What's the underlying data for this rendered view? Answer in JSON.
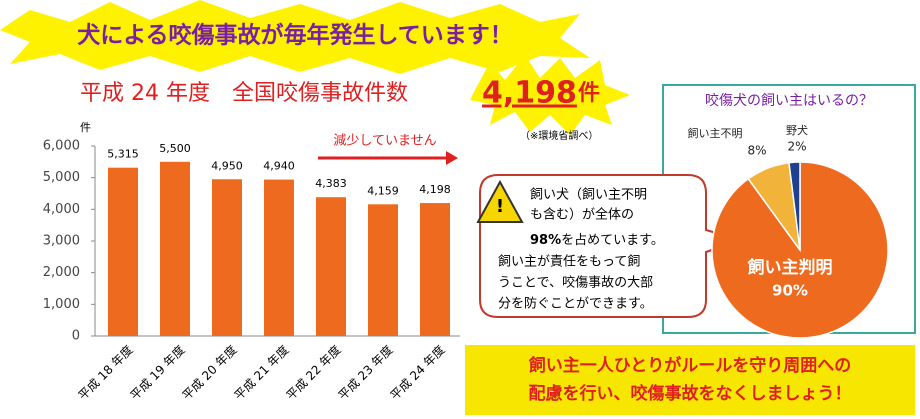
{
  "banner": "犬による咬傷事故が毎年発生しています！",
  "headline": {
    "text": "平成 24 年度　全国咬傷事故件数",
    "count": "4,198",
    "unit": "件",
    "note": "（※環境省調べ）"
  },
  "callout": {
    "line1": "飼い犬（飼い主不明",
    "line2": "も含む）が全体の",
    "line3_bold": "98%",
    "line3": "を占めています。",
    "line4": "飼い主が責任をもって飼",
    "line5": "うことで、咬傷事故の大部",
    "line6": "分を防ぐことができます。"
  },
  "footer": {
    "line1": "飼い主一人ひとりがルールを守り周囲への",
    "line2": "配慮を行い、咬傷事故をなくしましょう！"
  },
  "chart_data": [
    {
      "type": "bar",
      "y_label": "件",
      "annotation": "減少していません",
      "categories": [
        "平成 18 年度",
        "平成 19 年度",
        "平成 20 年度",
        "平成 21 年度",
        "平成 22 年度",
        "平成 23 年度",
        "平成 24 年度"
      ],
      "values": [
        5315,
        5500,
        4950,
        4940,
        4383,
        4159,
        4198
      ],
      "value_labels": [
        "5,315",
        "5,500",
        "4,950",
        "4,940",
        "4,383",
        "4,159",
        "4,198"
      ],
      "color": "#ee6a1e",
      "ylim": [
        0,
        6000
      ],
      "yticks": [
        0,
        {
          "value": 1000,
          "label": "1,000"
        },
        {
          "value": 2000,
          "label": "2,000"
        },
        {
          "value": 3000,
          "label": "3,000"
        },
        {
          "value": 4000,
          "label": "4,000"
        },
        {
          "value": 5000,
          "label": "5,000"
        },
        {
          "value": 6000,
          "label": "6,000"
        }
      ],
      "grid": false
    },
    {
      "type": "pie",
      "title": "咬傷犬の飼い主はいるの？",
      "categories": [
        "飼い主判明",
        "飼い主不明",
        "野犬"
      ],
      "values": [
        90,
        8,
        2
      ],
      "value_labels": [
        "90%",
        "8%",
        "2%"
      ],
      "colors": [
        "#ee6a1e",
        "#f2b33a",
        "#1f3f8f"
      ]
    }
  ]
}
